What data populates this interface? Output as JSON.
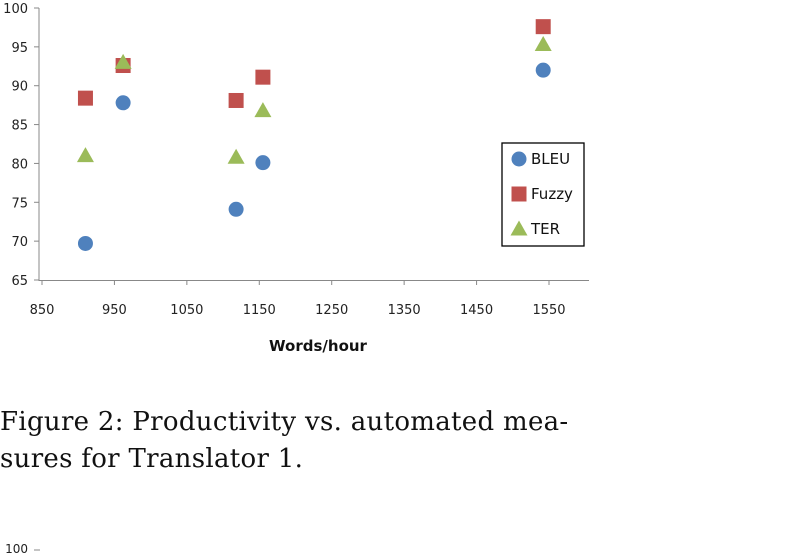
{
  "chart_data": {
    "type": "scatter",
    "title": "",
    "xlabel": "Words/hour",
    "ylabel": "",
    "xlim": [
      850,
      1600
    ],
    "ylim": [
      65,
      100
    ],
    "x_ticks": [
      "850",
      "950",
      "1050",
      "1150",
      "1250",
      "1350",
      "1450",
      "1550"
    ],
    "y_ticks": [
      "100",
      "95",
      "90",
      "85",
      "80",
      "75",
      "70",
      "65"
    ],
    "grid": false,
    "legend_position": "right",
    "series": [
      {
        "name": "BLEU",
        "marker": "circle",
        "color": "#4f81bd",
        "points": [
          [
            910,
            69.7
          ],
          [
            962,
            87.8
          ],
          [
            1118,
            74.1
          ],
          [
            1155,
            80.1
          ],
          [
            1542,
            92.0
          ]
        ]
      },
      {
        "name": "Fuzzy",
        "marker": "square",
        "color": "#c0504d",
        "points": [
          [
            910,
            88.4
          ],
          [
            962,
            92.6
          ],
          [
            1118,
            88.1
          ],
          [
            1155,
            91.1
          ],
          [
            1542,
            97.6
          ]
        ]
      },
      {
        "name": "TER",
        "marker": "triangle",
        "color": "#9bbb59",
        "points": [
          [
            910,
            81.0
          ],
          [
            962,
            93.0
          ],
          [
            1118,
            80.8
          ],
          [
            1155,
            86.8
          ],
          [
            1542,
            95.3
          ]
        ]
      }
    ]
  },
  "caption": {
    "line1": "Figure 2:  Productivity vs.  automated mea-",
    "line2": "sures for Translator 1."
  },
  "next_figure": {
    "top_tick": "100"
  }
}
